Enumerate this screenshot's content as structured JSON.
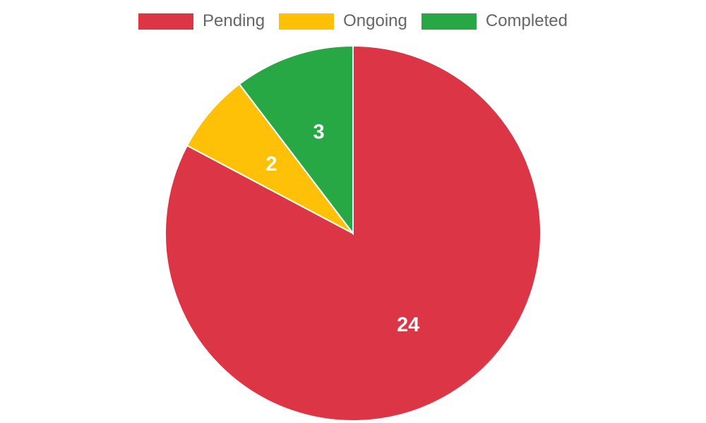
{
  "chart_data": {
    "type": "pie",
    "categories": [
      "Pending",
      "Ongoing",
      "Completed"
    ],
    "values": [
      24,
      2,
      3
    ],
    "colors": [
      "#dc3545",
      "#ffc107",
      "#28a745"
    ],
    "title": "",
    "legend_position": "top",
    "data_labels": [
      "24",
      "2",
      "3"
    ]
  },
  "legend": {
    "items": [
      {
        "label": "Pending",
        "color": "#dc3545"
      },
      {
        "label": "Ongoing",
        "color": "#ffc107"
      },
      {
        "label": "Completed",
        "color": "#28a745"
      }
    ]
  }
}
